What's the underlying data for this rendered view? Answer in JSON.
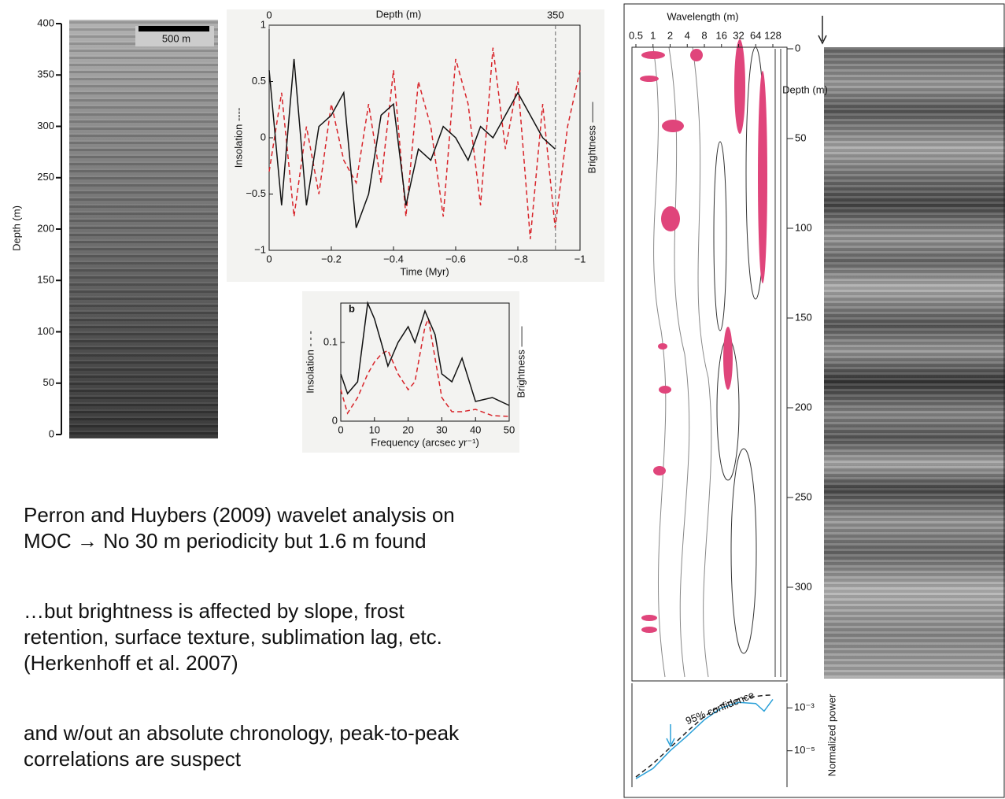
{
  "chart_data": [
    {
      "type": "image",
      "ylabel": "Depth (m)",
      "scale_label": "500 m",
      "ylim": [
        0,
        400
      ],
      "yticks": [
        0,
        50,
        100,
        150,
        200,
        250,
        300,
        350,
        400
      ]
    },
    {
      "type": "line",
      "top_label": "Depth (m)",
      "xlabel": "Time (Myr)",
      "ylabel": "Insolation ----",
      "y2label": "Brightness ——",
      "x": [
        0,
        -0.04,
        -0.08,
        -0.12,
        -0.16,
        -0.2,
        -0.24,
        -0.28,
        -0.32,
        -0.36,
        -0.4,
        -0.44,
        -0.48,
        -0.52,
        -0.56,
        -0.6,
        -0.64,
        -0.68,
        -0.72,
        -0.76,
        -0.8,
        -0.84,
        -0.88,
        -0.92,
        -0.96,
        -1.0
      ],
      "series": [
        {
          "name": "Insolation",
          "color": "#d8242a",
          "dash": true,
          "values": [
            -0.3,
            0.4,
            -0.7,
            0.1,
            -0.5,
            0.3,
            -0.2,
            -0.4,
            0.3,
            -0.4,
            0.6,
            -0.7,
            0.5,
            0.1,
            -0.7,
            0.7,
            0.3,
            -0.6,
            0.8,
            -0.1,
            0.5,
            -0.9,
            0.3,
            -0.8,
            0.1,
            0.6
          ]
        },
        {
          "name": "Brightness",
          "color": "#111111",
          "dash": false,
          "values": [
            0.6,
            -0.6,
            0.7,
            -0.6,
            0.1,
            0.2,
            0.4,
            -0.8,
            -0.5,
            0.2,
            0.3,
            -0.6,
            -0.1,
            -0.2,
            0.1,
            0.0,
            -0.2,
            0.1,
            0.0,
            0.2,
            0.4,
            0.2,
            0.0,
            -0.1,
            null,
            null
          ]
        }
      ],
      "xlim": [
        0,
        -1
      ],
      "xticks": [
        0,
        {
          "value": -0.2,
          "label": "−0.2"
        },
        {
          "value": -0.4,
          "label": "−0.4"
        },
        {
          "value": -0.6,
          "label": "−0.6"
        },
        {
          "value": -0.8,
          "label": "−0.8"
        },
        {
          "value": -1,
          "label": "−1"
        }
      ],
      "ylim": [
        -1,
        1
      ],
      "yticks": [
        {
          "value": -1,
          "label": "−1"
        },
        {
          "value": -0.5,
          "label": "−0.5"
        },
        0,
        0.5,
        1
      ],
      "x2lim": [
        0,
        380
      ],
      "x2ticks": [
        0,
        350
      ]
    },
    {
      "type": "line",
      "panel": "b",
      "xlabel": "Frequency (arcsec yr⁻¹)",
      "ylabel": "Insolation - - -",
      "y2label": "Brightness ——",
      "x": [
        0,
        2,
        5,
        8,
        10,
        12,
        14,
        17,
        20,
        22,
        25,
        26,
        28,
        30,
        33,
        36,
        40,
        45,
        50
      ],
      "series": [
        {
          "name": "Insolation",
          "color": "#d8242a",
          "dash": true,
          "values": [
            0.04,
            0.01,
            0.03,
            0.06,
            0.075,
            0.085,
            0.09,
            0.06,
            0.04,
            0.05,
            0.12,
            0.13,
            0.08,
            0.03,
            0.012,
            0.012,
            0.015,
            0.007,
            0.006
          ]
        },
        {
          "name": "Brightness",
          "color": "#111111",
          "dash": false,
          "values": [
            0.06,
            0.035,
            0.05,
            0.15,
            0.13,
            0.1,
            0.07,
            0.1,
            0.12,
            0.1,
            0.14,
            0.13,
            0.11,
            0.06,
            0.05,
            0.08,
            0.025,
            0.03,
            0.02
          ]
        }
      ],
      "xlim": [
        0,
        50
      ],
      "xticks": [
        0,
        10,
        20,
        30,
        40,
        50
      ],
      "ylim": [
        0,
        0.15
      ],
      "yticks": [
        0,
        0.1
      ]
    },
    {
      "type": "contour",
      "xlabel": "Wavelength (m)",
      "ylabel": "Depth (m)",
      "xlog": true,
      "xlim": [
        0.5,
        128
      ],
      "xticks": [
        0.5,
        1,
        2,
        4,
        8,
        16,
        32,
        64,
        128
      ],
      "ylim": [
        0,
        350
      ],
      "yticks": [
        0,
        50,
        100,
        150,
        200,
        250,
        300
      ]
    },
    {
      "type": "spectrum",
      "ylabel": "Normalized power",
      "xlog": true,
      "ylog": true,
      "x": [
        0.5,
        1,
        2,
        4,
        8,
        16,
        32,
        64,
        90,
        128
      ],
      "series": [
        {
          "color": "#2aa0d8",
          "dash": false,
          "values": [
            5e-07,
            1.5e-06,
            1e-05,
            5e-05,
            0.00028,
            0.001,
            0.0018,
            0.0016,
            0.0007,
            0.0025
          ]
        },
        {
          "name": "95% confidence",
          "color": "#222222",
          "dash": true,
          "values": [
            6e-07,
            2.5e-06,
            1.4e-05,
            8e-05,
            0.0004,
            0.0014,
            0.0026,
            0.0034,
            0.0038,
            0.004
          ]
        }
      ],
      "xlim": [
        0.5,
        128
      ],
      "ylim": [
        2e-07,
        0.014
      ],
      "yticks": [
        {
          "value": 0.001,
          "label": "10⁻³"
        },
        {
          "value": 1e-05,
          "label": "10⁻⁵"
        }
      ]
    }
  ],
  "notes": [
    [
      "Perron and Huybers (2009) wavelet analysis on",
      "MOC → No 30 m periodicity but 1.6 m found"
    ],
    [
      "…but brightness is affected by slope, frost",
      "retention, surface texture, sublimation lag, etc.",
      "(Herkenhoff et al. 2007)"
    ],
    [
      "and w/out an absolute chronology, peak-to-peak",
      "correlations are suspect"
    ]
  ]
}
